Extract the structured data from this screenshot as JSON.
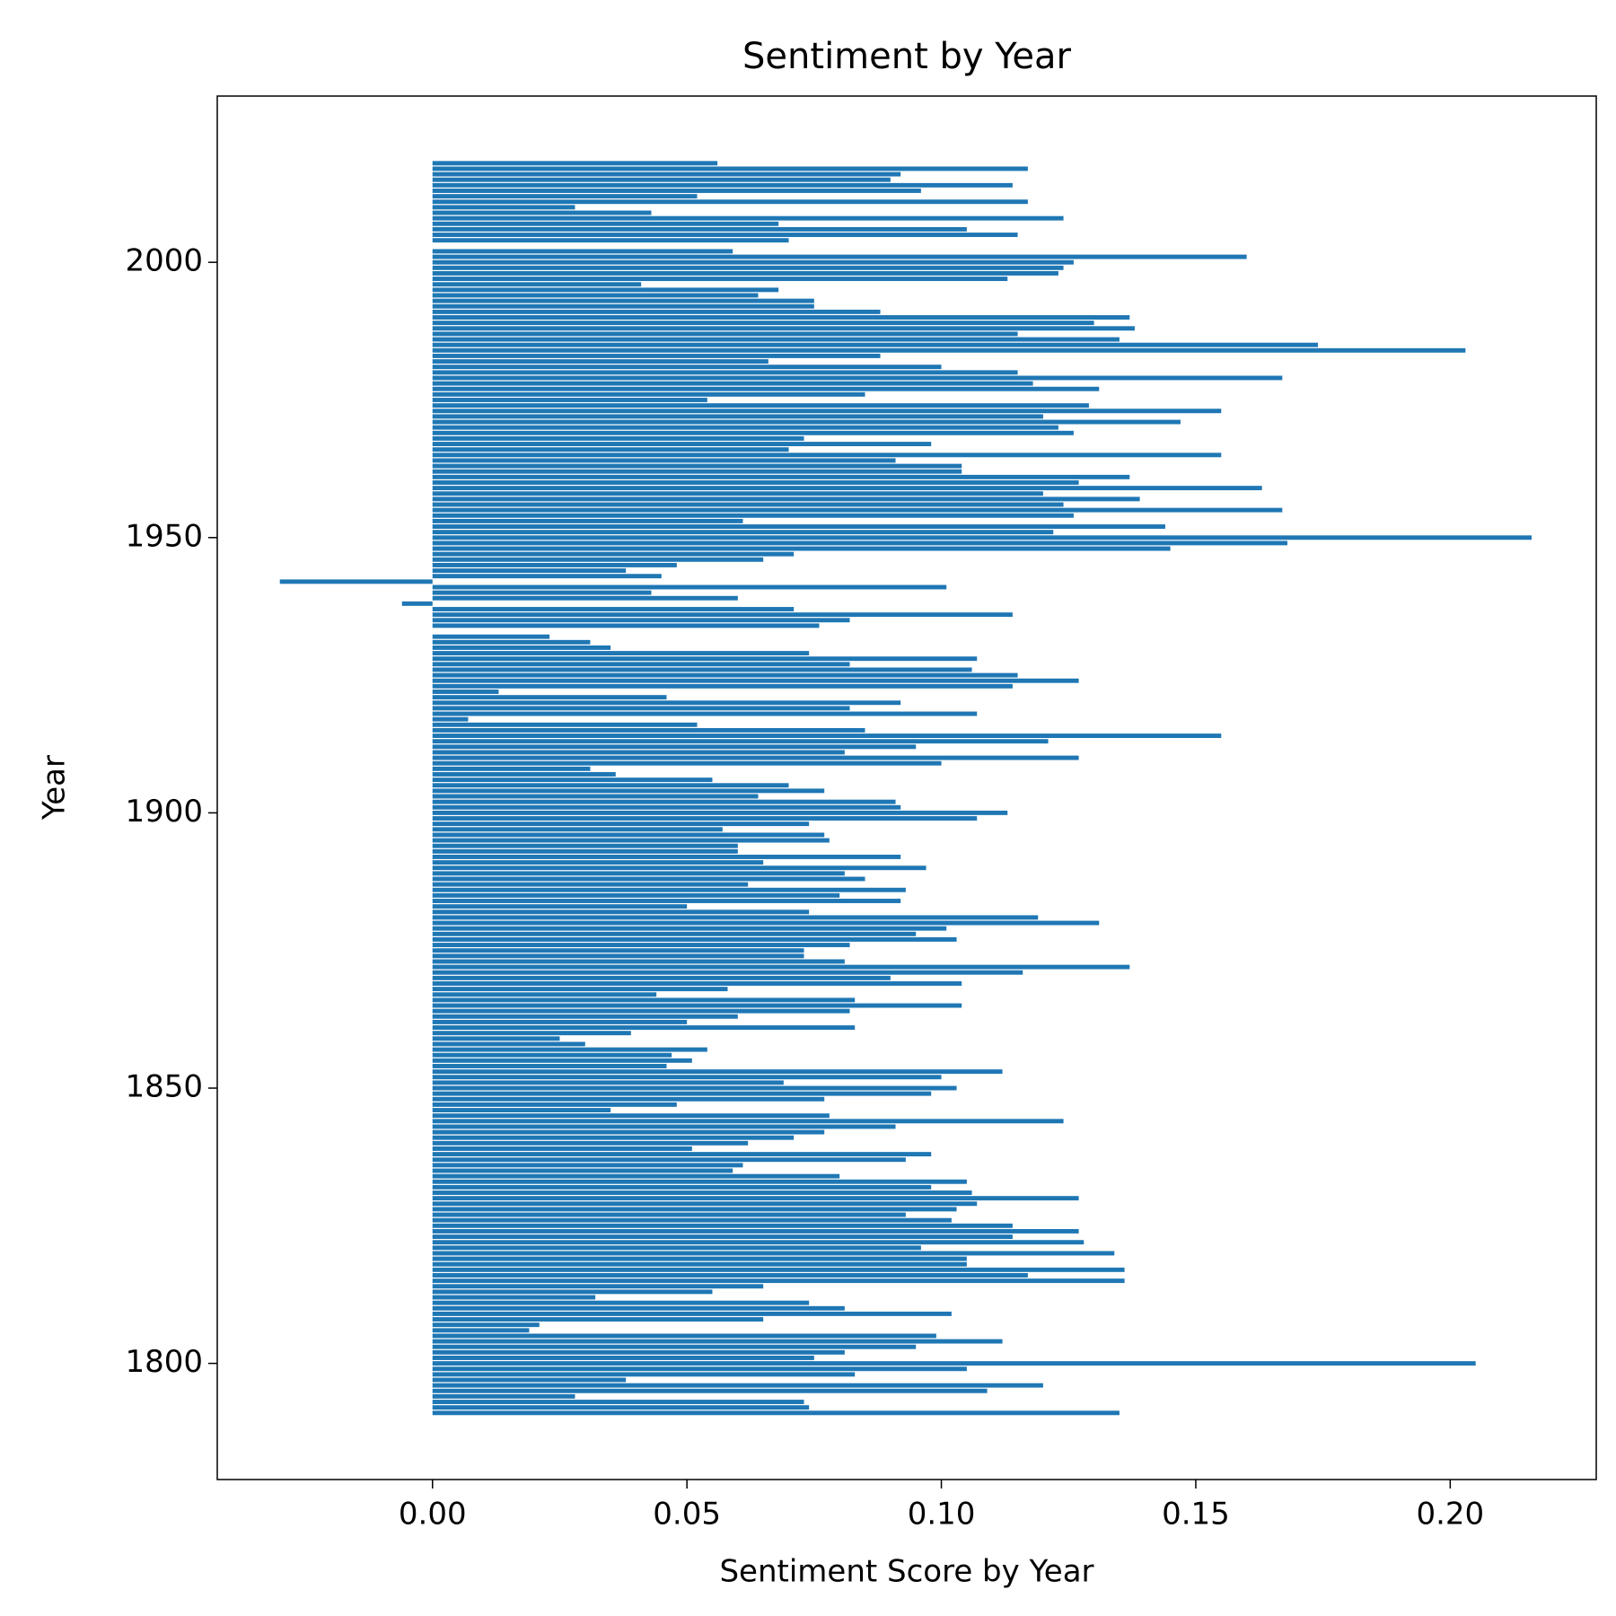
{
  "chart_data": {
    "type": "barh",
    "title": "Sentiment by Year",
    "xlabel": "Sentiment Score by Year",
    "ylabel": "Year",
    "color": "#1f77b4",
    "y": [
      1791,
      1792,
      1793,
      1794,
      1795,
      1796,
      1797,
      1798,
      1799,
      1800,
      1801,
      1802,
      1803,
      1804,
      1805,
      1806,
      1807,
      1808,
      1809,
      1810,
      1811,
      1812,
      1813,
      1814,
      1815,
      1816,
      1817,
      1818,
      1819,
      1820,
      1821,
      1822,
      1823,
      1824,
      1825,
      1826,
      1827,
      1828,
      1829,
      1830,
      1831,
      1832,
      1833,
      1834,
      1835,
      1836,
      1837,
      1838,
      1839,
      1840,
      1841,
      1842,
      1843,
      1844,
      1845,
      1846,
      1847,
      1848,
      1849,
      1850,
      1851,
      1852,
      1853,
      1854,
      1855,
      1856,
      1857,
      1858,
      1859,
      1860,
      1861,
      1862,
      1863,
      1864,
      1865,
      1866,
      1867,
      1868,
      1869,
      1870,
      1871,
      1872,
      1873,
      1874,
      1875,
      1876,
      1877,
      1878,
      1879,
      1880,
      1881,
      1882,
      1883,
      1884,
      1885,
      1886,
      1887,
      1888,
      1889,
      1890,
      1891,
      1892,
      1893,
      1894,
      1895,
      1896,
      1897,
      1898,
      1899,
      1900,
      1901,
      1902,
      1903,
      1904,
      1905,
      1906,
      1907,
      1908,
      1909,
      1910,
      1911,
      1912,
      1913,
      1914,
      1915,
      1916,
      1917,
      1918,
      1919,
      1920,
      1921,
      1922,
      1923,
      1924,
      1925,
      1926,
      1927,
      1928,
      1929,
      1930,
      1931,
      1932,
      1934,
      1935,
      1936,
      1937,
      1938,
      1939,
      1940,
      1941,
      1942,
      1943,
      1944,
      1945,
      1946,
      1947,
      1948,
      1949,
      1950,
      1951,
      1952,
      1953,
      1954,
      1955,
      1956,
      1957,
      1958,
      1959,
      1960,
      1961,
      1962,
      1963,
      1964,
      1965,
      1966,
      1967,
      1968,
      1969,
      1970,
      1971,
      1972,
      1973,
      1974,
      1975,
      1976,
      1977,
      1978,
      1979,
      1980,
      1981,
      1982,
      1983,
      1984,
      1985,
      1986,
      1987,
      1988,
      1989,
      1990,
      1991,
      1992,
      1993,
      1994,
      1995,
      1996,
      1997,
      1998,
      1999,
      2000,
      2001,
      2002,
      2004,
      2005,
      2006,
      2007,
      2008,
      2009,
      2010,
      2011,
      2012,
      2013,
      2014,
      2015,
      2016,
      2017,
      2018
    ],
    "values": [
      0.135,
      0.074,
      0.073,
      0.028,
      0.109,
      0.12,
      0.038,
      0.083,
      0.105,
      0.205,
      0.075,
      0.081,
      0.095,
      0.112,
      0.099,
      0.019,
      0.021,
      0.065,
      0.102,
      0.081,
      0.074,
      0.032,
      0.055,
      0.065,
      0.136,
      0.117,
      0.136,
      0.105,
      0.105,
      0.134,
      0.096,
      0.128,
      0.114,
      0.127,
      0.114,
      0.102,
      0.093,
      0.103,
      0.107,
      0.127,
      0.106,
      0.098,
      0.105,
      0.08,
      0.059,
      0.061,
      0.093,
      0.098,
      0.051,
      0.062,
      0.071,
      0.077,
      0.091,
      0.124,
      0.078,
      0.035,
      0.048,
      0.077,
      0.098,
      0.103,
      0.069,
      0.1,
      0.112,
      0.046,
      0.051,
      0.047,
      0.054,
      0.03,
      0.025,
      0.039,
      0.083,
      0.05,
      0.06,
      0.082,
      0.104,
      0.083,
      0.044,
      0.058,
      0.104,
      0.09,
      0.116,
      0.137,
      0.081,
      0.073,
      0.073,
      0.082,
      0.103,
      0.095,
      0.101,
      0.131,
      0.119,
      0.074,
      0.05,
      0.092,
      0.08,
      0.093,
      0.062,
      0.085,
      0.081,
      0.097,
      0.065,
      0.092,
      0.06,
      0.06,
      0.078,
      0.077,
      0.057,
      0.074,
      0.107,
      0.113,
      0.092,
      0.091,
      0.064,
      0.077,
      0.07,
      0.055,
      0.036,
      0.031,
      0.1,
      0.127,
      0.081,
      0.095,
      0.121,
      0.155,
      0.085,
      0.052,
      0.007,
      0.107,
      0.082,
      0.092,
      0.046,
      0.013,
      0.114,
      0.127,
      0.115,
      0.106,
      0.082,
      0.107,
      0.074,
      0.035,
      0.031,
      0.023,
      0.076,
      0.082,
      0.114,
      0.071,
      -0.006,
      0.06,
      0.043,
      0.101,
      -0.03,
      0.045,
      0.038,
      0.048,
      0.065,
      0.071,
      0.145,
      0.168,
      0.216,
      0.122,
      0.144,
      0.061,
      0.126,
      0.167,
      0.124,
      0.139,
      0.12,
      0.163,
      0.127,
      0.137,
      0.104,
      0.104,
      0.091,
      0.155,
      0.07,
      0.098,
      0.073,
      0.126,
      0.123,
      0.147,
      0.12,
      0.155,
      0.129,
      0.054,
      0.085,
      0.131,
      0.118,
      0.167,
      0.115,
      0.1,
      0.066,
      0.088,
      0.203,
      0.174,
      0.135,
      0.115,
      0.138,
      0.13,
      0.137,
      0.088,
      0.075,
      0.075,
      0.064,
      0.068,
      0.041,
      0.113,
      0.123,
      0.124,
      0.126,
      0.16,
      0.059,
      0.07,
      0.115,
      0.105,
      0.068,
      0.124,
      0.043,
      0.028,
      0.117,
      0.052,
      0.096,
      0.114,
      0.09,
      0.092,
      0.117,
      0.056
    ],
    "xlim": [
      -0.0423,
      0.2287
    ],
    "xticks": [
      {
        "value": 0,
        "label": "0.00"
      },
      {
        "value": 0.05,
        "label": "0.05"
      },
      {
        "value": 0.1,
        "label": "0.10"
      },
      {
        "value": 0.15,
        "label": "0.15"
      },
      {
        "value": 0.2,
        "label": "0.20"
      }
    ],
    "ylim": [
      1778.9,
      2030.2
    ],
    "yticks": [
      1800,
      1850,
      1900,
      1950,
      2000
    ]
  }
}
